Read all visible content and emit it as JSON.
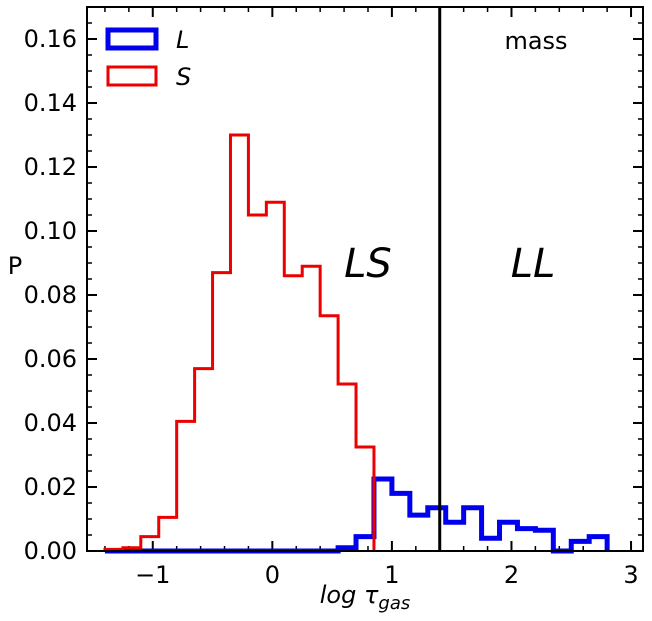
{
  "chart_data": {
    "type": "histogram",
    "xlabel": "log τgas",
    "xlabel_main": "log τ",
    "xlabel_sub": "gas",
    "ylabel": "P",
    "xlim": [
      -1.55,
      3.1
    ],
    "ylim": [
      0,
      0.17
    ],
    "xticks": [
      -1,
      0,
      1,
      2,
      3
    ],
    "xtick_labels": [
      "−1",
      "0",
      "1",
      "2",
      "3"
    ],
    "yticks": [
      0.0,
      0.02,
      0.04,
      0.06,
      0.08,
      0.1,
      0.12,
      0.14,
      0.16
    ],
    "ytick_labels": [
      "0.00",
      "0.02",
      "0.04",
      "0.06",
      "0.08",
      "0.10",
      "0.12",
      "0.14",
      "0.16"
    ],
    "x_minor_step": 0.2,
    "y_minor_step": 0.005,
    "corner_label": "mass",
    "vline": {
      "x": 1.4,
      "color": "#000000"
    },
    "regions": [
      {
        "label": "LS",
        "x": 0.8,
        "y": 0.09
      },
      {
        "label": "LL",
        "x": 2.18,
        "y": 0.09
      }
    ],
    "legend": {
      "position": "top-left"
    },
    "series": [
      {
        "name": "L",
        "color": "#0000ee",
        "stroke_width": 5,
        "bin_edges": [
          -1.4,
          -1.25,
          -1.1,
          -0.95,
          -0.8,
          -0.65,
          -0.5,
          -0.35,
          -0.2,
          -0.05,
          0.1,
          0.25,
          0.4,
          0.55,
          0.7,
          0.85,
          1.0,
          1.15,
          1.3,
          1.45,
          1.6,
          1.75,
          1.9,
          2.05,
          2.2,
          2.35,
          2.5,
          2.65,
          2.8
        ],
        "values": [
          0,
          0,
          0,
          0,
          0,
          0,
          0,
          0,
          0,
          0,
          0,
          0,
          0,
          0.001,
          0.0045,
          0.0225,
          0.018,
          0.0112,
          0.0135,
          0.009,
          0.0135,
          0.004,
          0.009,
          0.007,
          0.0065,
          0,
          0.003,
          0.0045
        ]
      },
      {
        "name": "S",
        "color": "#ee0000",
        "stroke_width": 3,
        "bin_edges": [
          -1.4,
          -1.25,
          -1.1,
          -0.95,
          -0.8,
          -0.65,
          -0.5,
          -0.35,
          -0.2,
          -0.05,
          0.1,
          0.25,
          0.4,
          0.55,
          0.7,
          0.85
        ],
        "values": [
          0.0005,
          0.001,
          0.0045,
          0.0105,
          0.0405,
          0.057,
          0.087,
          0.13,
          0.105,
          0.109,
          0.086,
          0.089,
          0.0735,
          0.0522,
          0.0325
        ]
      }
    ]
  }
}
